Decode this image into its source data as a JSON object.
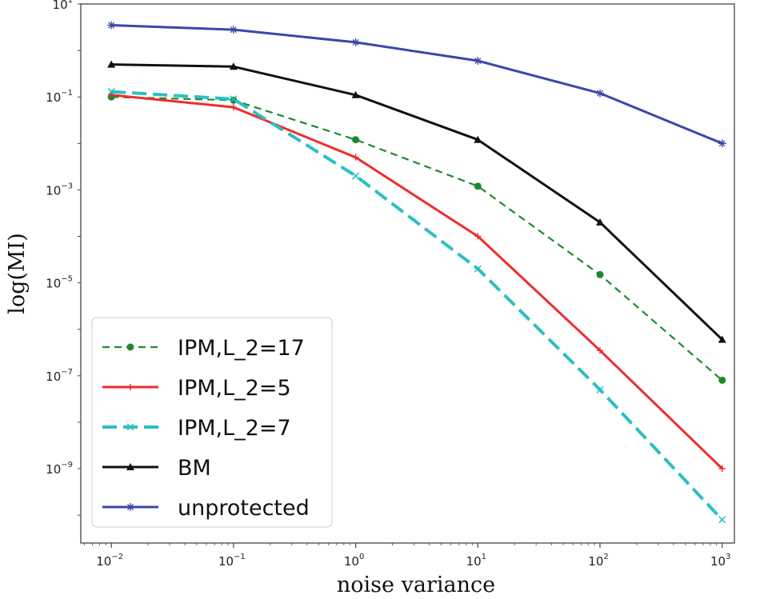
{
  "chart_data": {
    "type": "line",
    "title": "",
    "xlabel": "noise variance",
    "ylabel": "log(MI)",
    "xscale": "log",
    "yscale": "log",
    "x": [
      0.01,
      0.1,
      1,
      10,
      100,
      1000
    ],
    "xlim_exp": [
      -2.25,
      3.1
    ],
    "ylim_exp": [
      -10.6,
      1.0
    ],
    "xticks": [
      {
        "base": "10",
        "exp": "−2"
      },
      {
        "base": "10",
        "exp": "−1"
      },
      {
        "base": "10",
        "exp": "0"
      },
      {
        "base": "10",
        "exp": "1"
      },
      {
        "base": "10",
        "exp": "2"
      },
      {
        "base": "10",
        "exp": "3"
      }
    ],
    "yticks": [
      {
        "base": "10",
        "exp": "−9"
      },
      {
        "base": "10",
        "exp": "−7"
      },
      {
        "base": "10",
        "exp": "−5"
      },
      {
        "base": "10",
        "exp": "−3"
      },
      {
        "base": "10",
        "exp": "−1"
      },
      {
        "base": "10",
        "exp": "1"
      }
    ],
    "xtick_exps": [
      -2,
      -1,
      0,
      1,
      2,
      3
    ],
    "ytick_exps": [
      -9,
      -7,
      -5,
      -3,
      -1,
      1
    ],
    "legend_position": "lower-left",
    "series": [
      {
        "name": "IPM,L_2=17",
        "color": "#1e8a2e",
        "style": "dashed",
        "marker": "circle",
        "values": [
          0.1,
          0.085,
          0.012,
          0.0012,
          1.5e-05,
          8e-08
        ]
      },
      {
        "name": "IPM,L_2=5",
        "color": "#ee2d2d",
        "style": "solid",
        "marker": "plus",
        "values": [
          0.11,
          0.06,
          0.005,
          0.0001,
          3.5e-07,
          1e-09
        ]
      },
      {
        "name": "IPM,L_2=7",
        "color": "#2bbfc4",
        "style": "dashed",
        "marker": "x",
        "values": [
          0.13,
          0.09,
          0.002,
          2e-05,
          5e-08,
          8e-11
        ]
      },
      {
        "name": "BM",
        "color": "#111111",
        "style": "solid",
        "marker": "triangle",
        "values": [
          0.5,
          0.45,
          0.11,
          0.012,
          0.0002,
          6e-07
        ]
      },
      {
        "name": "unprotected",
        "color": "#3a48a8",
        "style": "solid",
        "marker": "star",
        "values": [
          3.5,
          2.8,
          1.5,
          0.6,
          0.12,
          0.01
        ]
      }
    ]
  }
}
